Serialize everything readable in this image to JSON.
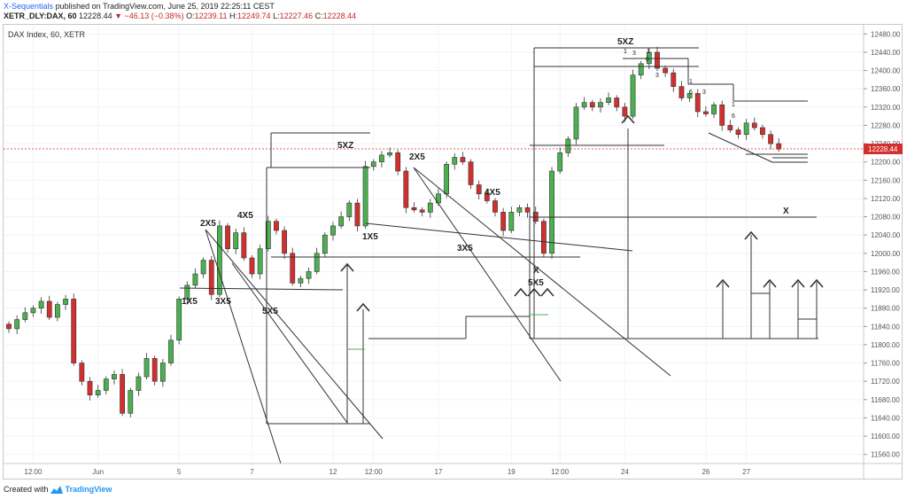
{
  "header": {
    "author": "X-Sequentials",
    "published": "published on TradingView.com, June 25, 2019 22:25:11 CEST",
    "symbol": "XETR_DLY:DAX, 60",
    "last": "12228.44",
    "change": "▼ −46.13 (−0.38%)",
    "open_label": "O:",
    "open": "12239.11",
    "high_label": "H:",
    "high": "12249.74",
    "low_label": "L:",
    "low": "12227.46",
    "close_label": "C:",
    "close": "12228.44"
  },
  "legend": "DAX Index, 60, XETR",
  "footer": {
    "created_with": "Created with",
    "brand": "TradingView"
  },
  "colors": {
    "up": "#4caf50",
    "down": "#d32f2f",
    "grid": "#f0f3fa",
    "text": "#555555",
    "last_price_tag": "#d32f2f"
  },
  "chart_data": {
    "type": "candlestick",
    "ylim": [
      11540,
      12500
    ],
    "y_ticks": [
      "12480.00",
      "12440.00",
      "12400.00",
      "12360.00",
      "12320.00",
      "12280.00",
      "12240.00",
      "12200.00",
      "12160.00",
      "12120.00",
      "12080.00",
      "12040.00",
      "12000.00",
      "11960.00",
      "11920.00",
      "11880.00",
      "11840.00",
      "11800.00",
      "11760.00",
      "11720.00",
      "11680.00",
      "11640.00",
      "11600.00",
      "11560.00"
    ],
    "x_ticks": [
      {
        "label": "12:00",
        "i": 3
      },
      {
        "label": "Jun",
        "i": 11
      },
      {
        "label": "5",
        "i": 21
      },
      {
        "label": "7",
        "i": 30
      },
      {
        "label": "12",
        "i": 40
      },
      {
        "label": "12:00",
        "i": 45
      },
      {
        "label": "17",
        "i": 53
      },
      {
        "label": "19",
        "i": 62
      },
      {
        "label": "12:00",
        "i": 68
      },
      {
        "label": "24",
        "i": 76
      },
      {
        "label": "26",
        "i": 86
      },
      {
        "label": "27",
        "i": 91
      }
    ],
    "last_price": "12228.44",
    "closes": [
      11835,
      11855,
      11870,
      11880,
      11895,
      11860,
      11888,
      11900,
      11760,
      11720,
      11690,
      11700,
      11725,
      11735,
      11650,
      11700,
      11730,
      11770,
      11720,
      11760,
      11810,
      11900,
      11930,
      11955,
      11985,
      11910,
      12060,
      12010,
      12045,
      11990,
      11955,
      12010,
      12070,
      12050,
      12000,
      11935,
      11945,
      11960,
      12000,
      12040,
      12060,
      12080,
      12110,
      12060,
      12190,
      12200,
      12215,
      12220,
      12180,
      12100,
      12095,
      12090,
      12110,
      12130,
      12195,
      12210,
      12200,
      12150,
      12130,
      12115,
      12090,
      12050,
      12090,
      12100,
      12090,
      12070,
      12000,
      12180,
      12220,
      12250,
      12320,
      12330,
      12320,
      12330,
      12340,
      12320,
      12300,
      12390,
      12415,
      12440,
      12405,
      12395,
      12365,
      12340,
      12350,
      12310,
      12305,
      12325,
      12280,
      12270,
      12260,
      12285,
      12275,
      12260,
      12240,
      12228
    ],
    "annotations": [
      "1X5",
      "2X5",
      "3X5",
      "4X5",
      "5X5",
      "5XZ",
      "2X5",
      "1X5",
      "3X5",
      "4X5",
      "X",
      "5X5",
      "5XZ",
      "X",
      "1",
      "3",
      "1",
      "6",
      "3",
      "1",
      "6",
      "3",
      "1",
      "6"
    ]
  }
}
